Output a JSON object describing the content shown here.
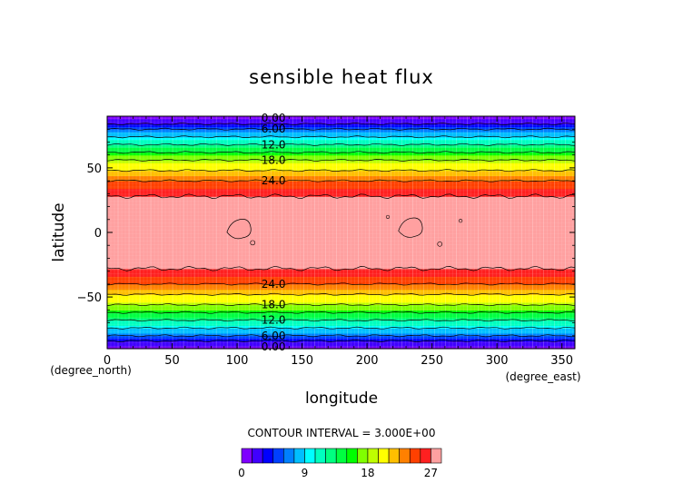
{
  "chart_data": {
    "type": "heatmap",
    "title": "sensible heat flux",
    "xlabel": "longitude",
    "ylabel": "latitude",
    "x_unit": "(degree_east)",
    "y_unit": "(degree_north)",
    "xlim": [
      0,
      360
    ],
    "ylim": [
      -90,
      90
    ],
    "x_ticks": [
      "0",
      "50",
      "100",
      "150",
      "200",
      "250",
      "300",
      "350"
    ],
    "y_ticks": [
      "50",
      "0",
      "−50"
    ],
    "contour_interval_text": "CONTOUR INTERVAL = 3.000E+00",
    "contour_labels_north": [
      "0.00",
      "6.00",
      "12.0",
      "18.0",
      "24.0"
    ],
    "contour_labels_south": [
      "24.0",
      "18.0",
      "12.0",
      "6.00",
      "0.00"
    ],
    "colorbar_ticks": [
      "0",
      "9",
      "18",
      "27"
    ],
    "colorbar_colors": [
      "#7f00ff",
      "#4000ff",
      "#0000ff",
      "#0040ff",
      "#0080ff",
      "#00bfff",
      "#00ffff",
      "#00ffbf",
      "#00ff80",
      "#00ff40",
      "#00ff00",
      "#80ff00",
      "#bfff00",
      "#ffff00",
      "#ffbf00",
      "#ff8000",
      "#ff4000",
      "#ff2020",
      "#ffa0a0"
    ],
    "zonal_profile": {
      "latitude": [
        -90,
        -84,
        -80,
        -76,
        -72,
        -68,
        -64,
        -60,
        -56,
        -52,
        -48,
        -44,
        -40,
        -36,
        -32,
        -28,
        -24,
        0,
        24,
        28,
        32,
        36,
        40,
        44,
        48,
        52,
        56,
        60,
        64,
        68,
        72,
        76,
        80,
        84,
        90
      ],
      "value": [
        0,
        3,
        6,
        8,
        10,
        12,
        14,
        16,
        18,
        20,
        21,
        22,
        24,
        25,
        26,
        27,
        28,
        28.5,
        28,
        27,
        26,
        25,
        24,
        22,
        21,
        20,
        18,
        16,
        14,
        12,
        10,
        8,
        6,
        3,
        0
      ]
    },
    "warm_patches": [
      {
        "lon": 102,
        "lat": 3
      },
      {
        "lon": 234,
        "lat": 4
      }
    ],
    "grid": true
  }
}
